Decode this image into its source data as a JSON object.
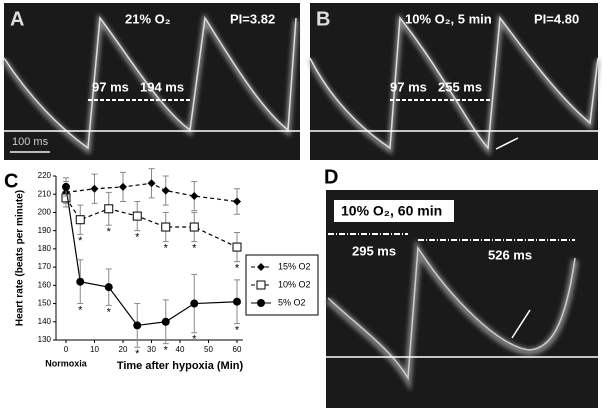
{
  "panels": {
    "A": {
      "label": "A",
      "condition": "21% O₂",
      "pi": "PI=3.82",
      "interval_1": "97 ms",
      "interval_2": "194 ms",
      "scale_bar": "100 ms"
    },
    "B": {
      "label": "B",
      "condition": "10% O₂, 5 min",
      "pi": "PI=4.80",
      "interval_1": "97 ms",
      "interval_2": "255 ms"
    },
    "C": {
      "label": "C"
    },
    "D": {
      "label": "D",
      "condition": "10% O₂, 60 min",
      "interval_1": "295 ms",
      "interval_2": "526 ms"
    }
  },
  "chart_data": {
    "type": "line",
    "y_label": "Heart rate (beats per minute)",
    "x_label": "Time after hypoxia (Min)",
    "baseline_label": "Normoxia",
    "significance_label": "*",
    "xlim": [
      0,
      60
    ],
    "xticks": [
      0,
      10,
      20,
      30,
      40,
      50,
      60
    ],
    "ylim": [
      130,
      220
    ],
    "yticks": [
      130,
      140,
      150,
      160,
      170,
      180,
      190,
      200,
      210,
      220
    ],
    "series": [
      {
        "name": "15% O2",
        "color": "#000000",
        "marker": "diamond",
        "dashed": true,
        "x": [
          0,
          10,
          20,
          30,
          35,
          45,
          60
        ],
        "values": [
          211,
          213,
          214,
          216,
          212,
          209,
          206
        ],
        "errors": [
          6,
          8,
          8,
          8,
          8,
          8,
          7
        ],
        "significant": [
          false,
          false,
          false,
          false,
          false,
          false,
          false
        ]
      },
      {
        "name": "10% O2",
        "color": "#000000",
        "marker": "square",
        "dashed": true,
        "x": [
          0,
          5,
          15,
          25,
          35,
          45,
          60
        ],
        "values": [
          208,
          196,
          202,
          198,
          192,
          192,
          181
        ],
        "errors": [
          5,
          8,
          9,
          8,
          8,
          8,
          8
        ],
        "significant": [
          false,
          true,
          true,
          true,
          true,
          true,
          true
        ]
      },
      {
        "name": "5% O2",
        "color": "#000000",
        "marker": "circle",
        "dashed": false,
        "x": [
          0,
          5,
          15,
          25,
          35,
          45,
          60
        ],
        "values": [
          214,
          162,
          159,
          138,
          140,
          150,
          151
        ],
        "errors": [
          5,
          12,
          10,
          12,
          12,
          16,
          12
        ],
        "significant": [
          false,
          true,
          true,
          true,
          true,
          true,
          true
        ]
      }
    ]
  }
}
